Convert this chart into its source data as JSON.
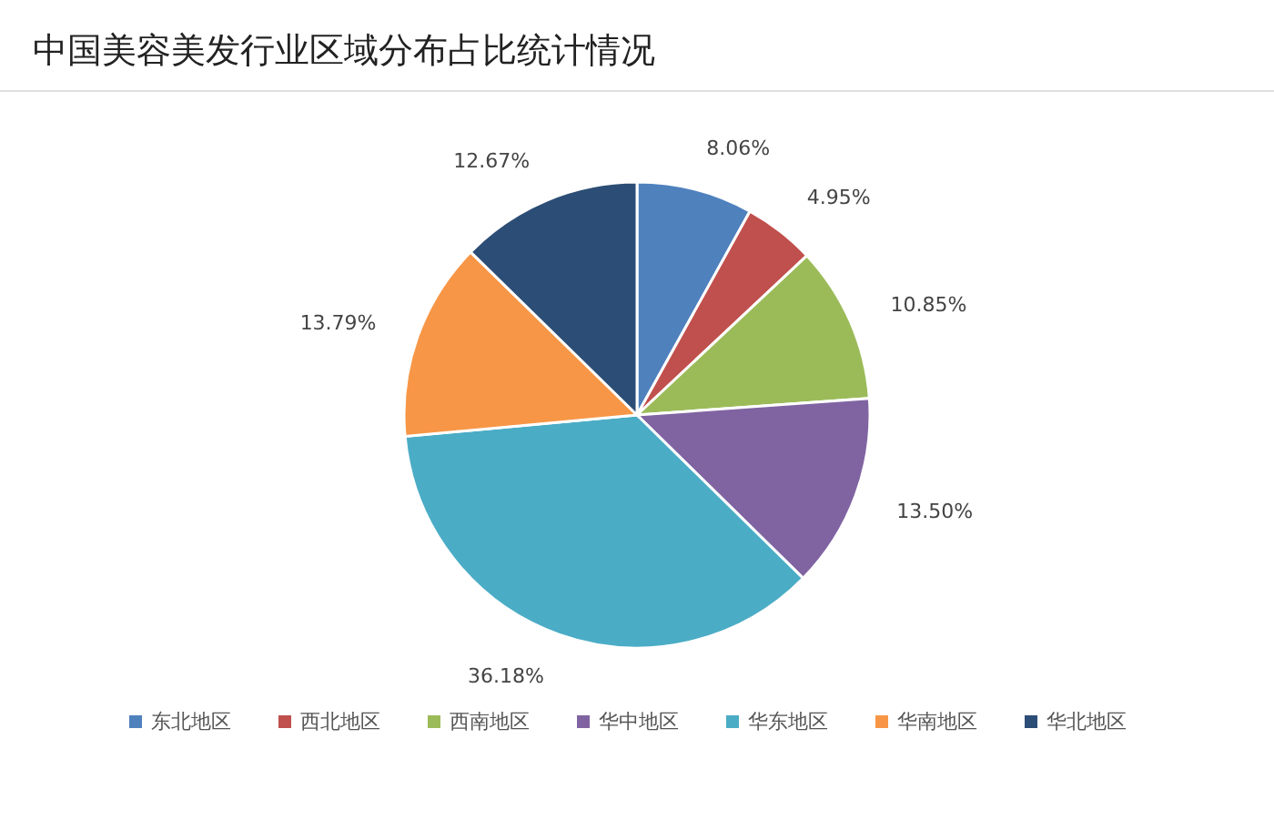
{
  "chart_data": {
    "type": "pie",
    "title": "中国美容美发行业区域分布占比统计情况",
    "categories": [
      "东北地区",
      "西北地区",
      "西南地区",
      "华中地区",
      "华东地区",
      "华南地区",
      "华北地区"
    ],
    "values": [
      8.06,
      4.95,
      10.85,
      13.5,
      36.18,
      13.79,
      12.67
    ],
    "colors": [
      "#4f81bd",
      "#c0504d",
      "#9bbb59",
      "#8064a2",
      "#4bacc6",
      "#f79646",
      "#2c4d75"
    ],
    "value_labels": [
      "8.06%",
      "4.95%",
      "10.85%",
      "13.50%",
      "36.18%",
      "13.79%",
      "12.67%"
    ],
    "legend": "bottom"
  }
}
